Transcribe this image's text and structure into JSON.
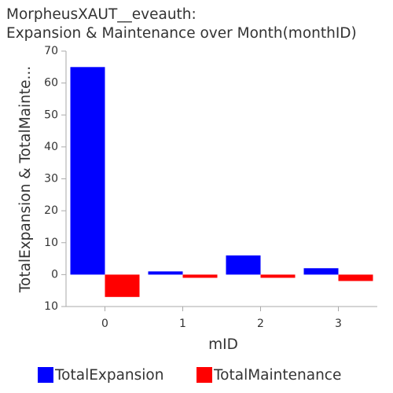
{
  "chart_data": {
    "type": "bar",
    "title": [
      "MorpheusXAUT__eveauth:",
      "Expansion & Maintenance over Month(monthID)"
    ],
    "xlabel": "mID",
    "ylabel": "TotalExpansion & TotalMainte...",
    "categories": [
      "0",
      "1",
      "2",
      "3"
    ],
    "series": [
      {
        "name": "TotalExpansion",
        "color": "#0000ff",
        "values": [
          65,
          1,
          6,
          2
        ]
      },
      {
        "name": "TotalMaintenance",
        "color": "#ff0000",
        "values": [
          -7,
          -1,
          -1,
          -2
        ]
      }
    ],
    "yticks": [
      {
        "value": 70,
        "label": "70"
      },
      {
        "value": 60,
        "label": "60"
      },
      {
        "value": 50,
        "label": "50"
      },
      {
        "value": 40,
        "label": "40"
      },
      {
        "value": 30,
        "label": "30"
      },
      {
        "value": 20,
        "label": "20"
      },
      {
        "value": 10,
        "label": "10"
      },
      {
        "value": 0,
        "label": "0"
      },
      {
        "value": -10,
        "label": "10"
      }
    ],
    "ylim": [
      -10,
      70
    ],
    "grid": false,
    "legend_position": "bottom",
    "axis_color": "#aaaaaa",
    "text_color": "#333333"
  }
}
